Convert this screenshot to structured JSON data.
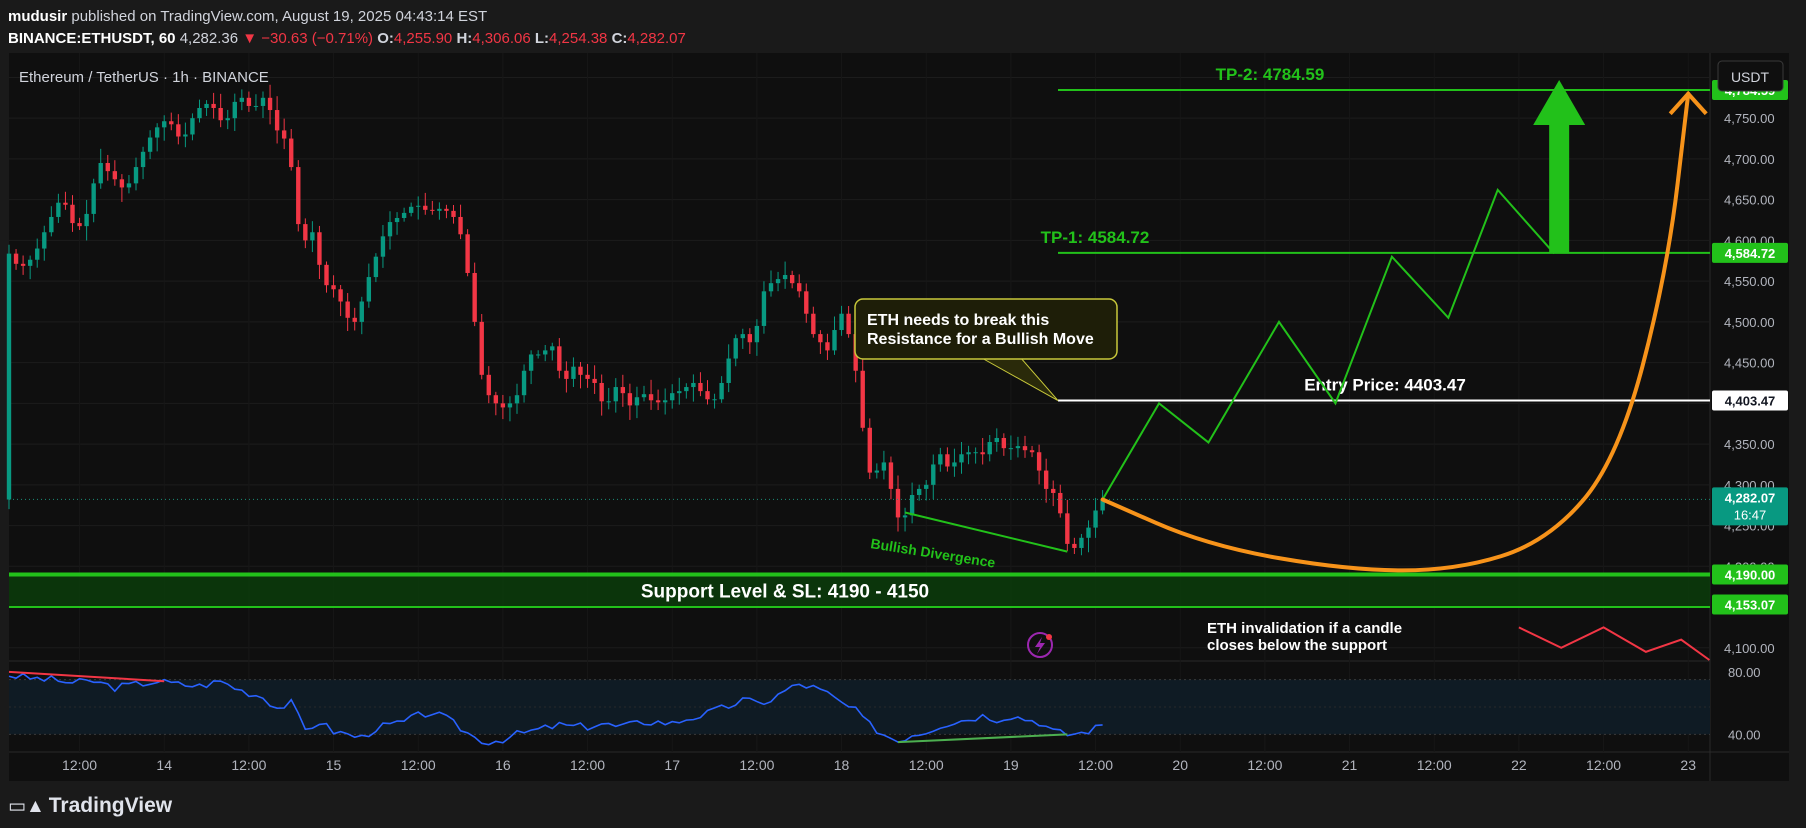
{
  "header": {
    "author": "mudusir",
    "published_text": " published on TradingView.com, August 19, 2025 04:43:14 EST",
    "symbol": "BINANCE:ETHUSDT, 60",
    "last": "4,282.36",
    "change_arrow": "▼",
    "change": "−30.63 (−0.71%)",
    "o_label": "O:",
    "o_value": "4,255.90",
    "h_label": "H:",
    "h_value": "4,306.06",
    "l_label": "L:",
    "l_value": "4,254.38",
    "c_label": "C:",
    "c_value": "4,282.07"
  },
  "legend_title": "Ethereum / TetherUS · 1h · BINANCE",
  "currency_button": "USDT",
  "footer": {
    "brand": "TradingView",
    "logo_icon": "tradingview-logo-icon"
  },
  "colors": {
    "background": "#0f0f0f",
    "up": "#089981",
    "down": "#f23645",
    "annotation_green": "#22c11a",
    "curve": "#f7931a",
    "rsi": "#2962ff"
  },
  "chart_data": [
    {
      "type": "candlestick",
      "title": "Ethereum / TetherUS · 1h · BINANCE",
      "yticks": [
        4100,
        4150,
        4200,
        4250,
        4300,
        4350,
        4400,
        4450,
        4500,
        4550,
        4600,
        4650,
        4700,
        4750,
        4800
      ],
      "ytick_labels": [
        "4,100.00",
        "",
        "4,200.00",
        "4,250.00",
        "4,300.00",
        "4,350.00",
        "4,400.00",
        "4,450.00",
        "4,500.00",
        "4,550.00",
        "4,600.00",
        "4,650.00",
        "4,700.00",
        "4,750.00",
        "4,800.00"
      ],
      "ylim": [
        4085,
        4830
      ],
      "xlim": [
        0,
        234
      ],
      "xticks": [
        {
          "x": 10,
          "label": "12:00"
        },
        {
          "x": 22,
          "label": "14"
        },
        {
          "x": 34,
          "label": "12:00"
        },
        {
          "x": 46,
          "label": "15"
        },
        {
          "x": 58,
          "label": "12:00"
        },
        {
          "x": 70,
          "label": "16"
        },
        {
          "x": 82,
          "label": "12:00"
        },
        {
          "x": 94,
          "label": "17"
        },
        {
          "x": 106,
          "label": "12:00"
        },
        {
          "x": 118,
          "label": "18"
        },
        {
          "x": 130,
          "label": "12:00"
        },
        {
          "x": 142,
          "label": "19"
        },
        {
          "x": 154,
          "label": "12:00"
        },
        {
          "x": 166,
          "label": "20"
        },
        {
          "x": 178,
          "label": "12:00"
        },
        {
          "x": 190,
          "label": "21"
        },
        {
          "x": 202,
          "label": "12:00"
        },
        {
          "x": 214,
          "label": "22"
        },
        {
          "x": 226,
          "label": "12:00"
        },
        {
          "x": 238,
          "label": "23"
        },
        {
          "x": 250,
          "label": "12:00"
        }
      ],
      "price_path": [
        [
          0,
          4590
        ],
        [
          2,
          4565
        ],
        [
          4,
          4580
        ],
        [
          6,
          4620
        ],
        [
          8,
          4655
        ],
        [
          10,
          4610
        ],
        [
          12,
          4640
        ],
        [
          13,
          4700
        ],
        [
          15,
          4680
        ],
        [
          17,
          4660
        ],
        [
          19,
          4700
        ],
        [
          21,
          4735
        ],
        [
          23,
          4750
        ],
        [
          25,
          4720
        ],
        [
          27,
          4760
        ],
        [
          29,
          4770
        ],
        [
          31,
          4740
        ],
        [
          33,
          4780
        ],
        [
          35,
          4760
        ],
        [
          37,
          4780
        ],
        [
          38,
          4740
        ],
        [
          40,
          4720
        ],
        [
          41,
          4660
        ],
        [
          42,
          4580
        ],
        [
          43,
          4620
        ],
        [
          44,
          4600
        ],
        [
          45,
          4540
        ],
        [
          46,
          4550
        ],
        [
          47,
          4530
        ],
        [
          48,
          4520
        ],
        [
          49,
          4490
        ],
        [
          50,
          4510
        ],
        [
          51,
          4540
        ],
        [
          52,
          4570
        ],
        [
          53,
          4590
        ],
        [
          54,
          4620
        ],
        [
          56,
          4630
        ],
        [
          58,
          4645
        ],
        [
          60,
          4635
        ],
        [
          62,
          4640
        ],
        [
          64,
          4625
        ],
        [
          65,
          4590
        ],
        [
          66,
          4530
        ],
        [
          67,
          4470
        ],
        [
          68,
          4400
        ],
        [
          69,
          4420
        ],
        [
          70,
          4380
        ],
        [
          71,
          4410
        ],
        [
          72,
          4390
        ],
        [
          73,
          4430
        ],
        [
          74,
          4450
        ],
        [
          75,
          4470
        ],
        [
          76,
          4450
        ],
        [
          77,
          4480
        ],
        [
          78,
          4460
        ],
        [
          79,
          4420
        ],
        [
          80,
          4440
        ],
        [
          81,
          4450
        ],
        [
          82,
          4420
        ],
        [
          83,
          4440
        ],
        [
          84,
          4410
        ],
        [
          85,
          4395
        ],
        [
          86,
          4410
        ],
        [
          87,
          4430
        ],
        [
          88,
          4395
        ],
        [
          89,
          4400
        ],
        [
          90,
          4415
        ],
        [
          92,
          4400
        ],
        [
          94,
          4405
        ],
        [
          95,
          4420
        ],
        [
          96,
          4410
        ],
        [
          97,
          4430
        ],
        [
          98,
          4420
        ],
        [
          99,
          4410
        ],
        [
          100,
          4400
        ],
        [
          101,
          4410
        ],
        [
          102,
          4440
        ],
        [
          103,
          4470
        ],
        [
          104,
          4490
        ],
        [
          105,
          4480
        ],
        [
          106,
          4470
        ],
        [
          107,
          4520
        ],
        [
          108,
          4555
        ],
        [
          109,
          4540
        ],
        [
          110,
          4565
        ],
        [
          111,
          4550
        ],
        [
          112,
          4545
        ],
        [
          113,
          4530
        ],
        [
          114,
          4490
        ],
        [
          115,
          4480
        ],
        [
          116,
          4470
        ],
        [
          117,
          4460
        ],
        [
          118,
          4520
        ],
        [
          119,
          4500
        ],
        [
          120,
          4470
        ],
        [
          121,
          4410
        ],
        [
          122,
          4330
        ],
        [
          123,
          4300
        ],
        [
          124,
          4335
        ],
        [
          125,
          4320
        ],
        [
          126,
          4270
        ],
        [
          127,
          4250
        ],
        [
          128,
          4275
        ],
        [
          129,
          4300
        ],
        [
          130,
          4290
        ],
        [
          131,
          4310
        ],
        [
          132,
          4340
        ],
        [
          133,
          4335
        ],
        [
          134,
          4310
        ],
        [
          135,
          4345
        ],
        [
          136,
          4330
        ],
        [
          137,
          4350
        ],
        [
          138,
          4330
        ],
        [
          139,
          4345
        ],
        [
          140,
          4360
        ],
        [
          141,
          4355
        ],
        [
          142,
          4335
        ],
        [
          143,
          4355
        ],
        [
          144,
          4340
        ],
        [
          145,
          4345
        ],
        [
          146,
          4335
        ],
        [
          147,
          4300
        ],
        [
          148,
          4290
        ],
        [
          149,
          4290
        ],
        [
          150,
          4240
        ],
        [
          151,
          4215
        ],
        [
          152,
          4230
        ],
        [
          153,
          4240
        ],
        [
          154,
          4255
        ],
        [
          155,
          4282
        ]
      ],
      "levels": [
        {
          "label": "TP-2: 4784.59",
          "price": 4784.59,
          "axis_label": "4,784.59",
          "color": "#22c11a"
        },
        {
          "label": "TP-1: 4584.72",
          "price": 4584.72,
          "axis_label": "4,584.72",
          "color": "#22c11a"
        },
        {
          "label": "Entry Price: 4403.47",
          "price": 4403.47,
          "axis_label": "4,403.47",
          "color": "#ffffff"
        },
        {
          "label": "",
          "price": 4190,
          "axis_label": "4,190.00",
          "color": "#22c11a"
        },
        {
          "label": "",
          "price": 4153.07,
          "axis_label": "4,153.07",
          "color": "#22c11a"
        }
      ],
      "current_price": {
        "price": 4282.07,
        "label": "4,282.07",
        "countdown": "16:47"
      },
      "support_zone": {
        "label": "Support Level & SL: 4190 - 4150",
        "top": 4190,
        "bottom": 4150
      },
      "zigzag_path": [
        [
          155,
          4282
        ],
        [
          163,
          4400
        ],
        [
          170,
          4352
        ],
        [
          180,
          4500
        ],
        [
          188,
          4400
        ],
        [
          196,
          4580
        ],
        [
          204,
          4505
        ],
        [
          211,
          4662
        ],
        [
          219,
          4584
        ]
      ],
      "curve_path": [
        [
          155,
          4282
        ],
        [
          170,
          4225
        ],
        [
          190,
          4195
        ],
        [
          205,
          4195
        ],
        [
          218,
          4230
        ],
        [
          228,
          4330
        ],
        [
          235,
          4560
        ],
        [
          238,
          4780
        ]
      ],
      "invalidation_path": [
        [
          214,
          4125
        ],
        [
          220,
          4100
        ],
        [
          226,
          4125
        ],
        [
          232,
          4095
        ],
        [
          237,
          4110
        ],
        [
          241,
          4085
        ]
      ],
      "divergence_line": [
        [
          127,
          4266
        ],
        [
          150,
          4218
        ]
      ],
      "annotations": [
        {
          "text": "ETH needs to break this",
          "text2": "Resistance for a Bullish Move"
        },
        {
          "text": "Bullish Divergence"
        },
        {
          "text": "ETH invalidation if a candle",
          "text2": "closes below the support"
        }
      ]
    },
    {
      "type": "line",
      "title": "",
      "ylim": [
        30,
        85
      ],
      "yticks": [
        40,
        80
      ],
      "ytick_labels": [
        "40.00",
        "80.00"
      ],
      "band": [
        40,
        75
      ],
      "values": [
        [
          0,
          78
        ],
        [
          3,
          76
        ],
        [
          6,
          75
        ],
        [
          9,
          73
        ],
        [
          12,
          74
        ],
        [
          15,
          70
        ],
        [
          18,
          72
        ],
        [
          21,
          74
        ],
        [
          24,
          72
        ],
        [
          27,
          71
        ],
        [
          30,
          74
        ],
        [
          33,
          68
        ],
        [
          36,
          64
        ],
        [
          38,
          57
        ],
        [
          40,
          60
        ],
        [
          42,
          43
        ],
        [
          44,
          48
        ],
        [
          46,
          42
        ],
        [
          48,
          40
        ],
        [
          50,
          38
        ],
        [
          52,
          44
        ],
        [
          54,
          46
        ],
        [
          56,
          48
        ],
        [
          58,
          52
        ],
        [
          60,
          54
        ],
        [
          62,
          50
        ],
        [
          64,
          44
        ],
        [
          66,
          38
        ],
        [
          68,
          35
        ],
        [
          70,
          37
        ],
        [
          72,
          40
        ],
        [
          74,
          42
        ],
        [
          76,
          44
        ],
        [
          78,
          46
        ],
        [
          80,
          45
        ],
        [
          82,
          45
        ],
        [
          84,
          47
        ],
        [
          86,
          45
        ],
        [
          88,
          46
        ],
        [
          90,
          48
        ],
        [
          92,
          48
        ],
        [
          94,
          47
        ],
        [
          96,
          50
        ],
        [
          98,
          52
        ],
        [
          100,
          55
        ],
        [
          102,
          58
        ],
        [
          104,
          62
        ],
        [
          106,
          60
        ],
        [
          108,
          62
        ],
        [
          110,
          68
        ],
        [
          112,
          72
        ],
        [
          114,
          70
        ],
        [
          116,
          66
        ],
        [
          118,
          60
        ],
        [
          120,
          55
        ],
        [
          122,
          46
        ],
        [
          124,
          40
        ],
        [
          126,
          36
        ],
        [
          128,
          40
        ],
        [
          130,
          42
        ],
        [
          132,
          46
        ],
        [
          134,
          48
        ],
        [
          136,
          50
        ],
        [
          138,
          52
        ],
        [
          140,
          50
        ],
        [
          142,
          52
        ],
        [
          144,
          50
        ],
        [
          146,
          48
        ],
        [
          148,
          42
        ],
        [
          150,
          40
        ],
        [
          152,
          41
        ],
        [
          154,
          44
        ],
        [
          155,
          46
        ]
      ],
      "divergence_up": [
        [
          126,
          35
        ],
        [
          150,
          40
        ]
      ],
      "divergence_down": [
        [
          0,
          80
        ],
        [
          22,
          74
        ]
      ]
    }
  ]
}
